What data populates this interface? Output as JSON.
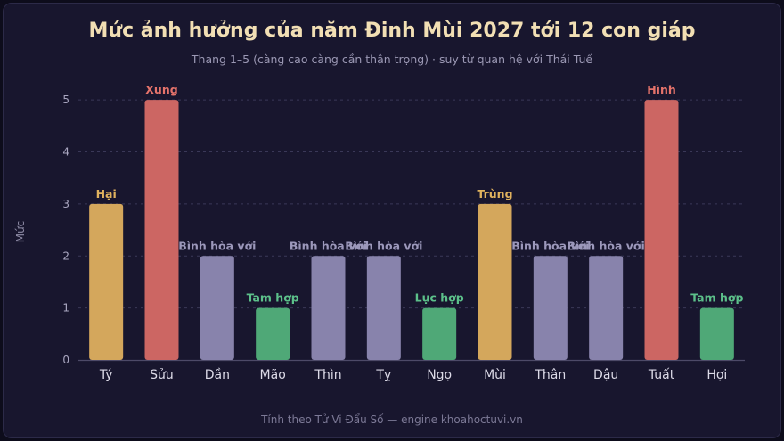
{
  "page": {
    "title": "Mức ảnh hưởng của năm Đinh Mùi 2027 tới 12 con giáp",
    "subtitle": "Thang 1–5 (càng cao càng cần thận trọng) · suy từ quan hệ với Thái Tuế",
    "footer": "Tính theo Tử Vi Đẩu Số — engine khoahoctuvi.vn"
  },
  "chart_data": {
    "type": "bar",
    "ylabel": "Mức",
    "xlabel": "",
    "ylim": [
      0,
      5.5
    ],
    "yticks": [
      0,
      1,
      2,
      3,
      4,
      5
    ],
    "grid": true,
    "categories": [
      "Tý",
      "Sửu",
      "Dần",
      "Mão",
      "Thìn",
      "Tỵ",
      "Ngọ",
      "Mùi",
      "Thân",
      "Dậu",
      "Tuất",
      "Hợi"
    ],
    "values": [
      3,
      5,
      2,
      1,
      2,
      2,
      1,
      3,
      2,
      2,
      5,
      1
    ],
    "labels": [
      "Hại",
      "Xung",
      "Bình hòa với",
      "Tam hợp",
      "Bình hòa với",
      "Bình hòa với",
      "Lục hợp",
      "Trùng",
      "Bình hòa với",
      "Bình hòa với",
      "Hình",
      "Tam hợp"
    ],
    "bar_colors": [
      "#d4a75c",
      "#cc6663",
      "#8883ac",
      "#4fa877",
      "#8883ac",
      "#8883ac",
      "#4fa877",
      "#d4a75c",
      "#8883ac",
      "#8883ac",
      "#cc6663",
      "#4fa877"
    ],
    "label_colors": [
      "#e0b25e",
      "#e5736b",
      "#9c98bb",
      "#5cc08a",
      "#9c98bb",
      "#9c98bb",
      "#5cc08a",
      "#e0b25e",
      "#9c98bb",
      "#9c98bb",
      "#e5736b",
      "#5cc08a"
    ]
  }
}
